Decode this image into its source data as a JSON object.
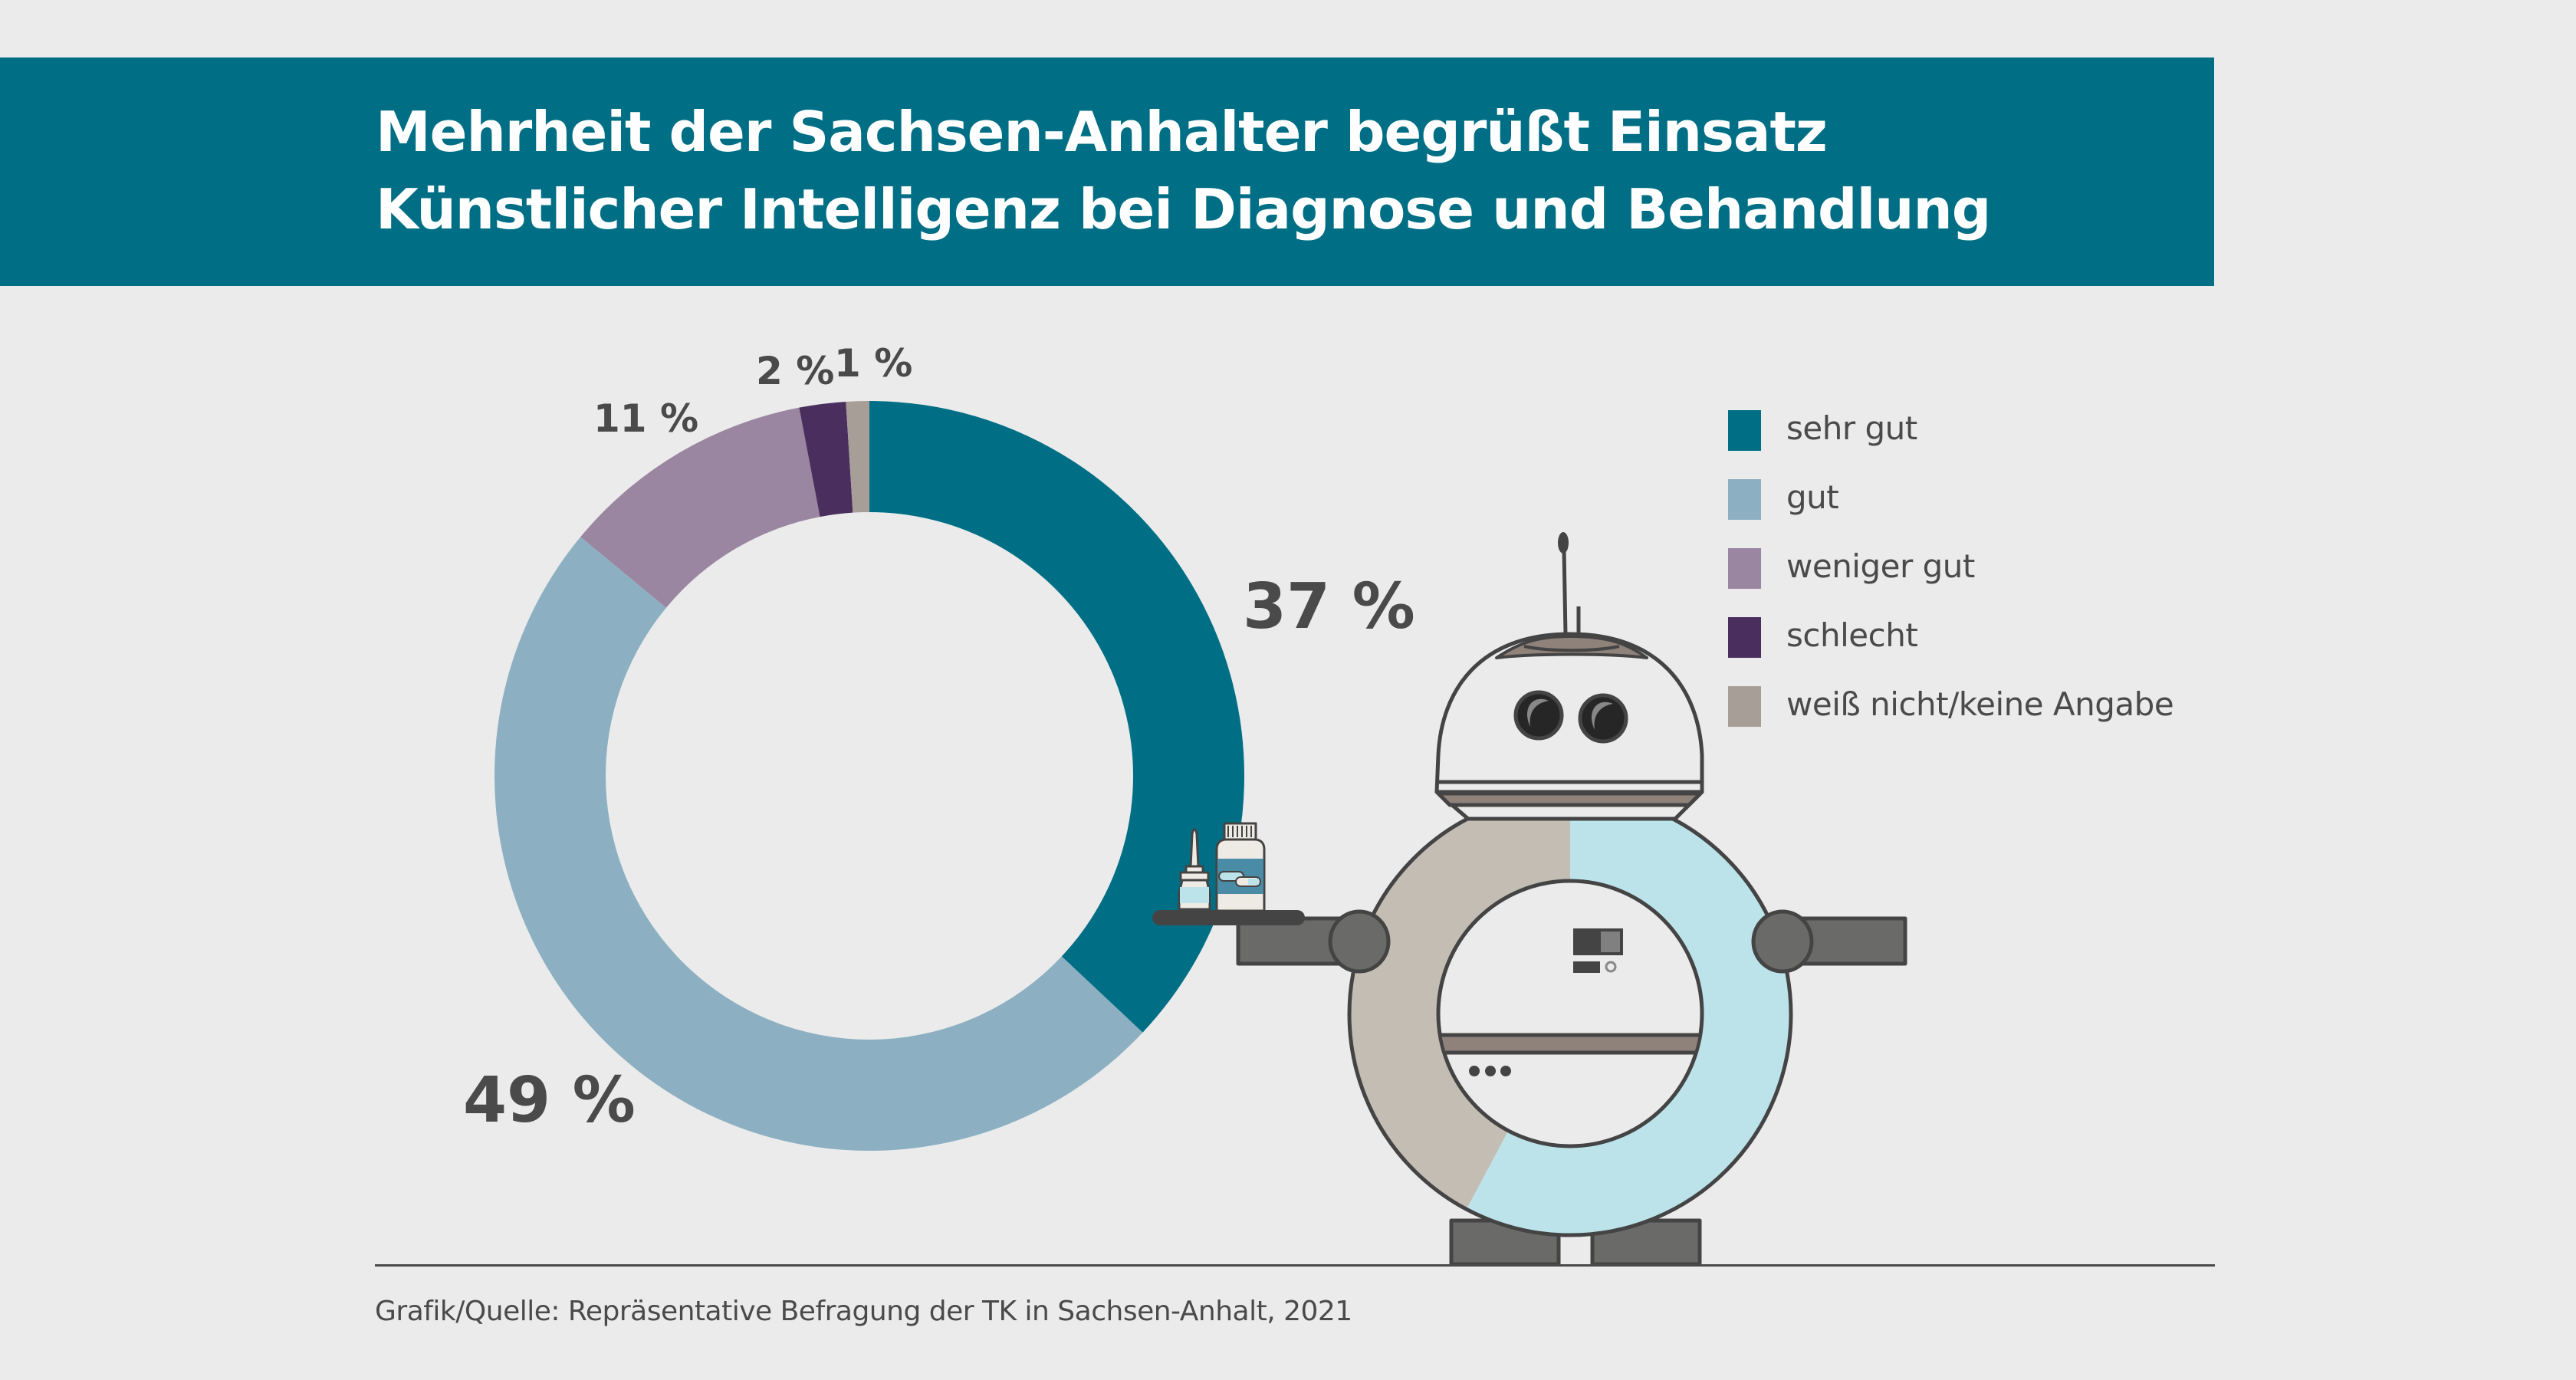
{
  "header": {
    "title_line_1": "Mehrheit der Sachsen-Anhalter begrüßt Einsatz",
    "title_line_2": "Künstlicher Intelligenz bei Diagnose und Behandlung",
    "background_color": "#006F85"
  },
  "chart_data": {
    "type": "pie",
    "variant": "donut",
    "title": "Mehrheit der Sachsen-Anhalter begrüßt Einsatz Künstlicher Intelligenz bei Diagnose und Behandlung",
    "categories": [
      "sehr gut",
      "gut",
      "weniger gut",
      "schlecht",
      "weiß nicht/keine Angabe"
    ],
    "values": [
      37,
      49,
      11,
      2,
      1
    ],
    "labels": [
      "37 %",
      "49 %",
      "11 %",
      "2 %",
      "1 %"
    ],
    "colors": [
      "#006F85",
      "#8CB0C2",
      "#9A86A0",
      "#4A2E5E",
      "#A89E98"
    ],
    "unit": "%",
    "start_angle": "12 o'clock, clockwise",
    "legend_position": "right"
  },
  "legend": {
    "items": [
      {
        "label": "sehr gut",
        "color": "#006F85"
      },
      {
        "label": "gut",
        "color": "#8CB0C2"
      },
      {
        "label": "weniger gut",
        "color": "#9A86A0"
      },
      {
        "label": "schlecht",
        "color": "#4A2E5E"
      },
      {
        "label": "weiß nicht/keine Angabe",
        "color": "#A89E98"
      }
    ]
  },
  "illustration": {
    "subject": "robot-holding-medicine-tray",
    "body_colors": [
      "#BCE3EA",
      "#C4BDB3"
    ]
  },
  "footer": {
    "source": "Grafik/Quelle: Repräsentative Befragung der TK in Sachsen-Anhalt, 2021"
  }
}
